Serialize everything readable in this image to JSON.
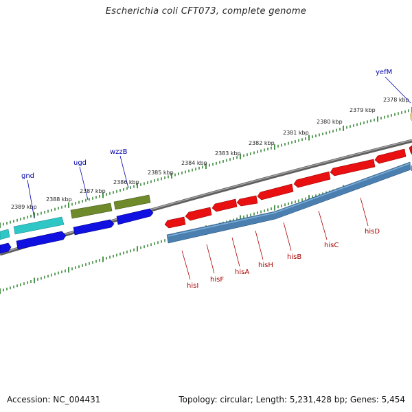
{
  "title": "Escherichia coli CFT073, complete genome",
  "footer": {
    "accession": "Accession: NC_004431",
    "stats": "Topology: circular; Length: 5,231,428 bp; Genes: 5,454"
  },
  "colors": {
    "backbone": "#7f7f7f",
    "tick": "#1e7a1e",
    "cyan_gene": "#2fc6c6",
    "blue_gene": "#1010e0",
    "olive_gene": "#6e8a2a",
    "red_gene": "#e81010",
    "steel_gene": "#4a7fb0",
    "yellow_gene": "#e8d890",
    "label_blue": "#0000aa",
    "label_red": "#aa0000"
  },
  "scale_labels": [
    "2378 kbp",
    "2379 kbp",
    "2380 kbp",
    "2381 kbp",
    "2382 kbp",
    "2383 kbp",
    "2384 kbp",
    "2385 kbp",
    "2386 kbp",
    "2387 kbp",
    "2388 kbp",
    "2389 kbp"
  ],
  "gene_labels_top": [
    "yefM",
    "wzzB",
    "ugd",
    "gnd"
  ],
  "gene_labels_bottom": [
    "hisI",
    "hisF",
    "hisA",
    "hisH",
    "hisB",
    "hisC",
    "hisD"
  ]
}
